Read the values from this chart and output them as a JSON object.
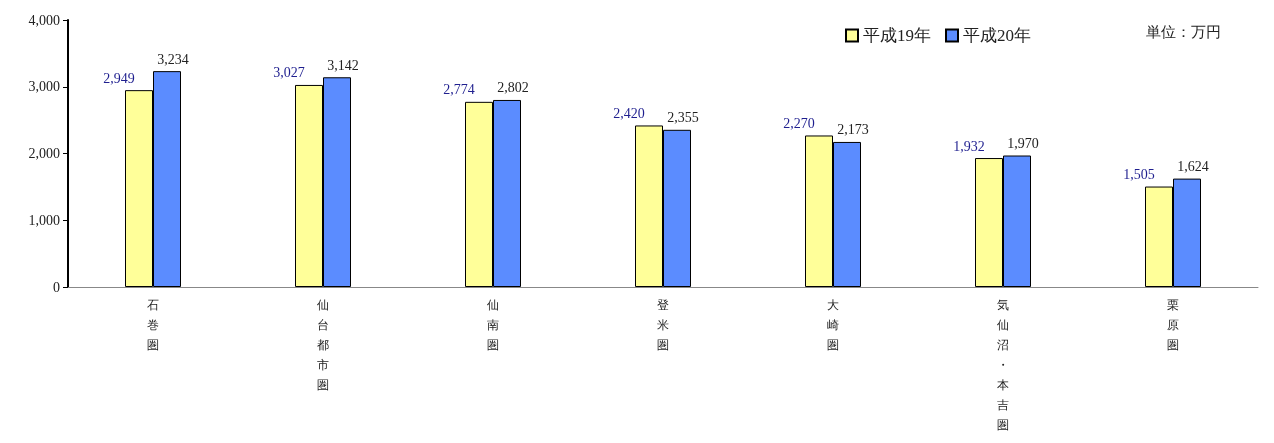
{
  "chart_data": {
    "type": "bar",
    "categories": [
      "石巻圏",
      "仙台都市圏",
      "仙南圏",
      "登米圏",
      "大崎圏",
      "気仙沼・本吉圏",
      "栗原圏"
    ],
    "series": [
      {
        "name": "平成19年",
        "color": "#ffff99",
        "values": [
          2949,
          3027,
          2774,
          2420,
          2270,
          1932,
          1505
        ],
        "value_labels": [
          "2,949",
          "3,027",
          "2,774",
          "2,420",
          "2,270",
          "1,932",
          "1,505"
        ]
      },
      {
        "name": "平成20年",
        "color": "#5b8cff",
        "values": [
          3234,
          3142,
          2802,
          2355,
          2173,
          1970,
          1624
        ],
        "value_labels": [
          "3,234",
          "3,142",
          "2,802",
          "2,355",
          "2,173",
          "1,970",
          "1,624"
        ]
      }
    ],
    "ylim": [
      0,
      4000
    ],
    "yticks": [
      0,
      {
        "value": 1000,
        "label": "1,000"
      },
      {
        "value": 2000,
        "label": "2,000"
      },
      {
        "value": 3000,
        "label": "3,000"
      },
      {
        "value": 4000,
        "label": "4,000"
      }
    ],
    "grid": false,
    "legend": "top right",
    "annotations": [
      "単位：万円"
    ]
  }
}
